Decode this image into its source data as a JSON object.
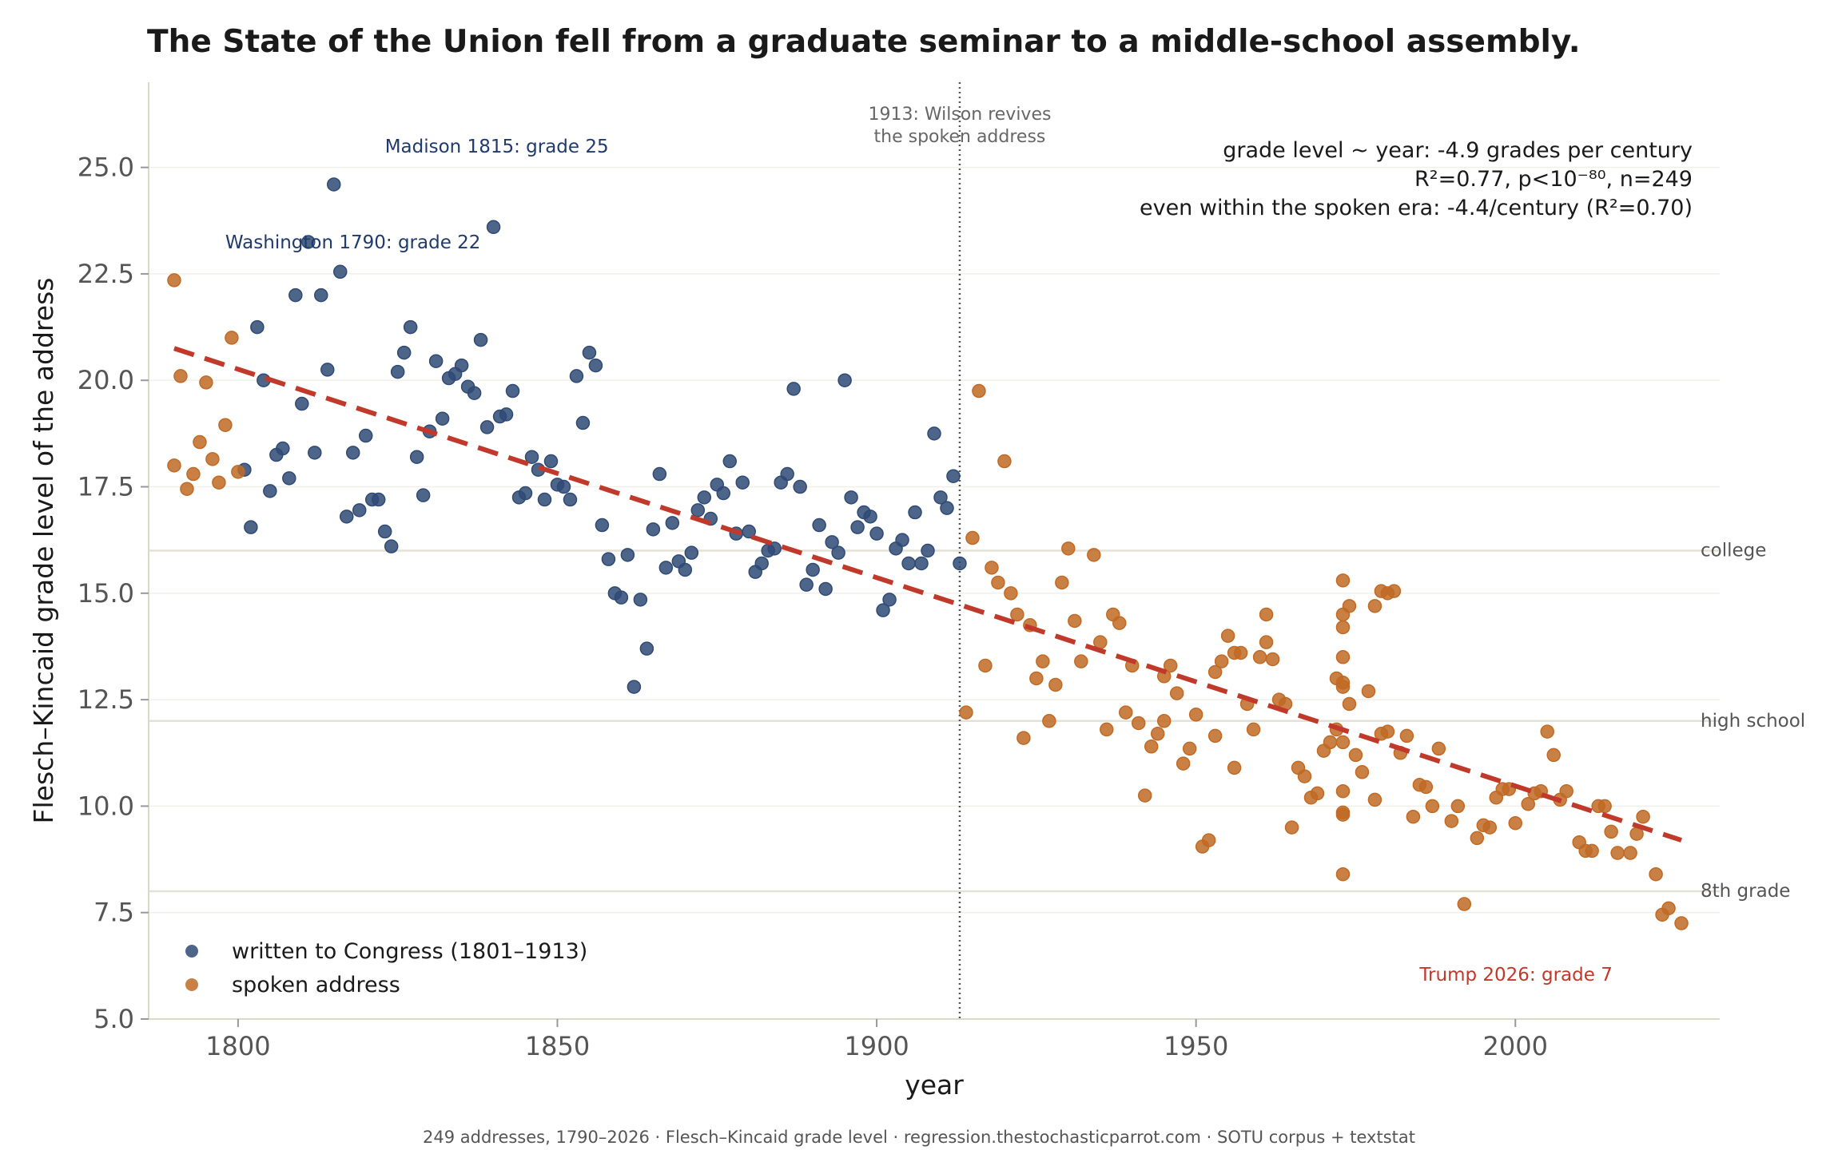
{
  "chart_data": {
    "type": "scatter",
    "title": "The State of the Union fell from a graduate seminar to a middle-school assembly.",
    "xlabel": "year",
    "ylabel": "Flesch–Kincaid grade level of the address",
    "xlim": [
      1786,
      2032
    ],
    "ylim": [
      5.0,
      27.0
    ],
    "x_ticks": [
      1800,
      1850,
      1900,
      1950,
      2000
    ],
    "y_ticks": [
      5.0,
      7.5,
      10.0,
      12.5,
      15.0,
      17.5,
      20.0,
      22.5,
      25.0
    ],
    "grid": true,
    "legend_position": "bottom-left",
    "colors": {
      "written": "#2f4a75",
      "spoken": "#c06a25",
      "trend": "#c0392b",
      "reference": "#e4e1d6",
      "annotation": "#1f3a6b",
      "highlight": "#c0392b"
    },
    "reference_lines": [
      {
        "y": 16,
        "label": "college"
      },
      {
        "y": 12,
        "label": "high school"
      },
      {
        "y": 8,
        "label": "8th grade"
      }
    ],
    "vertical_line": {
      "x": 1913,
      "label_line1": "1913: Wilson revives",
      "label_line2": "the spoken address"
    },
    "trend": {
      "x": [
        1790,
        2026
      ],
      "y": [
        20.75,
        9.2
      ]
    },
    "stats": {
      "line1": "grade level ~ year:  -4.9 grades per century",
      "line2": "R²=0.77,  p<10⁻⁸⁰,  n=249",
      "line3": "even within the spoken era: -4.4/century (R²=0.70)"
    },
    "annotations": [
      {
        "text": "Madison 1815: grade 25",
        "x": 1823,
        "y": 25.5,
        "style": "navy"
      },
      {
        "text": "Washington 1790: grade 22",
        "x": 1798,
        "y": 23.25,
        "style": "navy"
      },
      {
        "text": "Trump 2026: grade 7",
        "x": 1985,
        "y": 6.05,
        "style": "red"
      }
    ],
    "footer": "249 addresses, 1790–2026 · Flesch–Kincaid grade level · regression.thestochasticparrot.com · SOTU corpus + textstat",
    "series": [
      {
        "name": "written to Congress (1801–1913)",
        "key": "written",
        "points": [
          [
            1801,
            17.9
          ],
          [
            1802,
            16.55
          ],
          [
            1803,
            21.25
          ],
          [
            1804,
            20.0
          ],
          [
            1805,
            17.4
          ],
          [
            1806,
            18.25
          ],
          [
            1807,
            18.4
          ],
          [
            1808,
            17.7
          ],
          [
            1809,
            22.0
          ],
          [
            1810,
            19.45
          ],
          [
            1811,
            23.25
          ],
          [
            1812,
            18.3
          ],
          [
            1813,
            22.0
          ],
          [
            1814,
            20.25
          ],
          [
            1815,
            24.6
          ],
          [
            1816,
            22.55
          ],
          [
            1817,
            16.8
          ],
          [
            1818,
            18.3
          ],
          [
            1819,
            16.95
          ],
          [
            1820,
            18.7
          ],
          [
            1821,
            17.2
          ],
          [
            1822,
            17.2
          ],
          [
            1823,
            16.45
          ],
          [
            1824,
            16.1
          ],
          [
            1825,
            20.2
          ],
          [
            1826,
            20.65
          ],
          [
            1827,
            21.25
          ],
          [
            1828,
            18.2
          ],
          [
            1829,
            17.3
          ],
          [
            1830,
            18.8
          ],
          [
            1831,
            20.45
          ],
          [
            1832,
            19.1
          ],
          [
            1833,
            20.05
          ],
          [
            1834,
            20.15
          ],
          [
            1835,
            20.35
          ],
          [
            1836,
            19.85
          ],
          [
            1837,
            19.7
          ],
          [
            1838,
            20.95
          ],
          [
            1839,
            18.9
          ],
          [
            1840,
            23.6
          ],
          [
            1841,
            19.15
          ],
          [
            1842,
            19.2
          ],
          [
            1843,
            19.75
          ],
          [
            1844,
            17.25
          ],
          [
            1845,
            17.35
          ],
          [
            1846,
            18.2
          ],
          [
            1847,
            17.9
          ],
          [
            1848,
            17.2
          ],
          [
            1849,
            18.1
          ],
          [
            1850,
            17.55
          ],
          [
            1851,
            17.5
          ],
          [
            1852,
            17.2
          ],
          [
            1853,
            20.1
          ],
          [
            1854,
            19.0
          ],
          [
            1855,
            20.65
          ],
          [
            1856,
            20.35
          ],
          [
            1857,
            16.6
          ],
          [
            1858,
            15.8
          ],
          [
            1859,
            15.0
          ],
          [
            1860,
            14.9
          ],
          [
            1861,
            15.9
          ],
          [
            1862,
            12.8
          ],
          [
            1863,
            14.85
          ],
          [
            1864,
            13.7
          ],
          [
            1865,
            16.5
          ],
          [
            1866,
            17.8
          ],
          [
            1867,
            15.6
          ],
          [
            1868,
            16.65
          ],
          [
            1869,
            15.75
          ],
          [
            1870,
            15.55
          ],
          [
            1871,
            15.95
          ],
          [
            1872,
            16.95
          ],
          [
            1873,
            17.25
          ],
          [
            1874,
            16.75
          ],
          [
            1875,
            17.55
          ],
          [
            1876,
            17.35
          ],
          [
            1877,
            18.1
          ],
          [
            1878,
            16.4
          ],
          [
            1879,
            17.6
          ],
          [
            1880,
            16.45
          ],
          [
            1881,
            15.5
          ],
          [
            1882,
            15.7
          ],
          [
            1883,
            16.0
          ],
          [
            1884,
            16.05
          ],
          [
            1885,
            17.6
          ],
          [
            1886,
            17.8
          ],
          [
            1887,
            19.8
          ],
          [
            1888,
            17.5
          ],
          [
            1889,
            15.2
          ],
          [
            1890,
            15.55
          ],
          [
            1891,
            16.6
          ],
          [
            1892,
            15.1
          ],
          [
            1893,
            16.2
          ],
          [
            1894,
            15.95
          ],
          [
            1895,
            20.0
          ],
          [
            1896,
            17.25
          ],
          [
            1897,
            16.55
          ],
          [
            1898,
            16.9
          ],
          [
            1899,
            16.8
          ],
          [
            1900,
            16.4
          ],
          [
            1901,
            14.6
          ],
          [
            1902,
            14.85
          ],
          [
            1903,
            16.05
          ],
          [
            1904,
            16.25
          ],
          [
            1905,
            15.7
          ],
          [
            1906,
            16.9
          ],
          [
            1907,
            15.7
          ],
          [
            1908,
            16.0
          ],
          [
            1909,
            18.75
          ],
          [
            1910,
            17.25
          ],
          [
            1911,
            17.0
          ],
          [
            1912,
            17.75
          ],
          [
            1913,
            15.7
          ]
        ]
      },
      {
        "name": "spoken address",
        "key": "spoken",
        "points": [
          [
            1790,
            22.35
          ],
          [
            1790,
            18.0
          ],
          [
            1791,
            20.1
          ],
          [
            1792,
            17.45
          ],
          [
            1793,
            17.8
          ],
          [
            1794,
            18.55
          ],
          [
            1795,
            19.95
          ],
          [
            1796,
            18.15
          ],
          [
            1797,
            17.6
          ],
          [
            1798,
            18.95
          ],
          [
            1799,
            21.0
          ],
          [
            1800,
            17.85
          ],
          [
            1914,
            12.2
          ],
          [
            1915,
            16.3
          ],
          [
            1916,
            19.75
          ],
          [
            1917,
            13.3
          ],
          [
            1918,
            15.6
          ],
          [
            1919,
            15.25
          ],
          [
            1920,
            18.1
          ],
          [
            1921,
            15.0
          ],
          [
            1922,
            14.5
          ],
          [
            1923,
            11.6
          ],
          [
            1924,
            14.25
          ],
          [
            1925,
            13.0
          ],
          [
            1926,
            13.4
          ],
          [
            1927,
            12.0
          ],
          [
            1928,
            12.85
          ],
          [
            1929,
            15.25
          ],
          [
            1930,
            16.05
          ],
          [
            1931,
            14.35
          ],
          [
            1932,
            13.4
          ],
          [
            1934,
            15.9
          ],
          [
            1935,
            13.85
          ],
          [
            1936,
            11.8
          ],
          [
            1937,
            14.5
          ],
          [
            1938,
            14.3
          ],
          [
            1939,
            12.2
          ],
          [
            1940,
            13.3
          ],
          [
            1941,
            11.95
          ],
          [
            1942,
            10.25
          ],
          [
            1943,
            11.4
          ],
          [
            1944,
            11.7
          ],
          [
            1945,
            12.0
          ],
          [
            1945,
            13.05
          ],
          [
            1946,
            13.3
          ],
          [
            1947,
            12.65
          ],
          [
            1948,
            11.0
          ],
          [
            1949,
            11.35
          ],
          [
            1950,
            12.15
          ],
          [
            1951,
            9.05
          ],
          [
            1952,
            9.2
          ],
          [
            1953,
            11.65
          ],
          [
            1953,
            13.15
          ],
          [
            1954,
            13.4
          ],
          [
            1955,
            14.0
          ],
          [
            1956,
            13.6
          ],
          [
            1956,
            10.9
          ],
          [
            1957,
            13.6
          ],
          [
            1958,
            12.4
          ],
          [
            1959,
            11.8
          ],
          [
            1960,
            13.5
          ],
          [
            1961,
            13.85
          ],
          [
            1961,
            14.5
          ],
          [
            1962,
            13.45
          ],
          [
            1963,
            12.5
          ],
          [
            1964,
            12.4
          ],
          [
            1965,
            9.5
          ],
          [
            1966,
            10.9
          ],
          [
            1967,
            10.7
          ],
          [
            1968,
            10.2
          ],
          [
            1969,
            10.3
          ],
          [
            1970,
            11.3
          ],
          [
            1971,
            11.5
          ],
          [
            1972,
            13.0
          ],
          [
            1972,
            11.8
          ],
          [
            1973,
            15.3
          ],
          [
            1973,
            14.5
          ],
          [
            1973,
            14.2
          ],
          [
            1973,
            13.5
          ],
          [
            1973,
            12.9
          ],
          [
            1973,
            12.8
          ],
          [
            1973,
            11.5
          ],
          [
            1973,
            10.35
          ],
          [
            1973,
            9.85
          ],
          [
            1973,
            9.8
          ],
          [
            1973,
            8.4
          ],
          [
            1974,
            14.7
          ],
          [
            1974,
            12.4
          ],
          [
            1975,
            11.2
          ],
          [
            1976,
            10.8
          ],
          [
            1977,
            12.7
          ],
          [
            1978,
            14.7
          ],
          [
            1978,
            10.15
          ],
          [
            1979,
            15.05
          ],
          [
            1979,
            11.7
          ],
          [
            1980,
            15.0
          ],
          [
            1980,
            11.75
          ],
          [
            1981,
            15.05
          ],
          [
            1982,
            11.25
          ],
          [
            1983,
            11.65
          ],
          [
            1984,
            9.75
          ],
          [
            1985,
            10.5
          ],
          [
            1986,
            10.45
          ],
          [
            1987,
            10.0
          ],
          [
            1988,
            11.35
          ],
          [
            1990,
            9.65
          ],
          [
            1991,
            10.0
          ],
          [
            1992,
            7.7
          ],
          [
            1994,
            9.25
          ],
          [
            1995,
            9.55
          ],
          [
            1996,
            9.5
          ],
          [
            1997,
            10.2
          ],
          [
            1998,
            10.4
          ],
          [
            1999,
            10.4
          ],
          [
            2000,
            9.6
          ],
          [
            2002,
            10.05
          ],
          [
            2003,
            10.3
          ],
          [
            2004,
            10.35
          ],
          [
            2005,
            11.75
          ],
          [
            2006,
            11.2
          ],
          [
            2007,
            10.15
          ],
          [
            2008,
            10.35
          ],
          [
            2010,
            9.15
          ],
          [
            2011,
            8.95
          ],
          [
            2012,
            8.95
          ],
          [
            2013,
            10.0
          ],
          [
            2014,
            10.0
          ],
          [
            2015,
            9.4
          ],
          [
            2016,
            8.9
          ],
          [
            2018,
            8.9
          ],
          [
            2019,
            9.35
          ],
          [
            2020,
            9.75
          ],
          [
            2022,
            8.4
          ],
          [
            2023,
            7.45
          ],
          [
            2024,
            7.6
          ],
          [
            2026,
            7.25
          ]
        ]
      }
    ]
  }
}
